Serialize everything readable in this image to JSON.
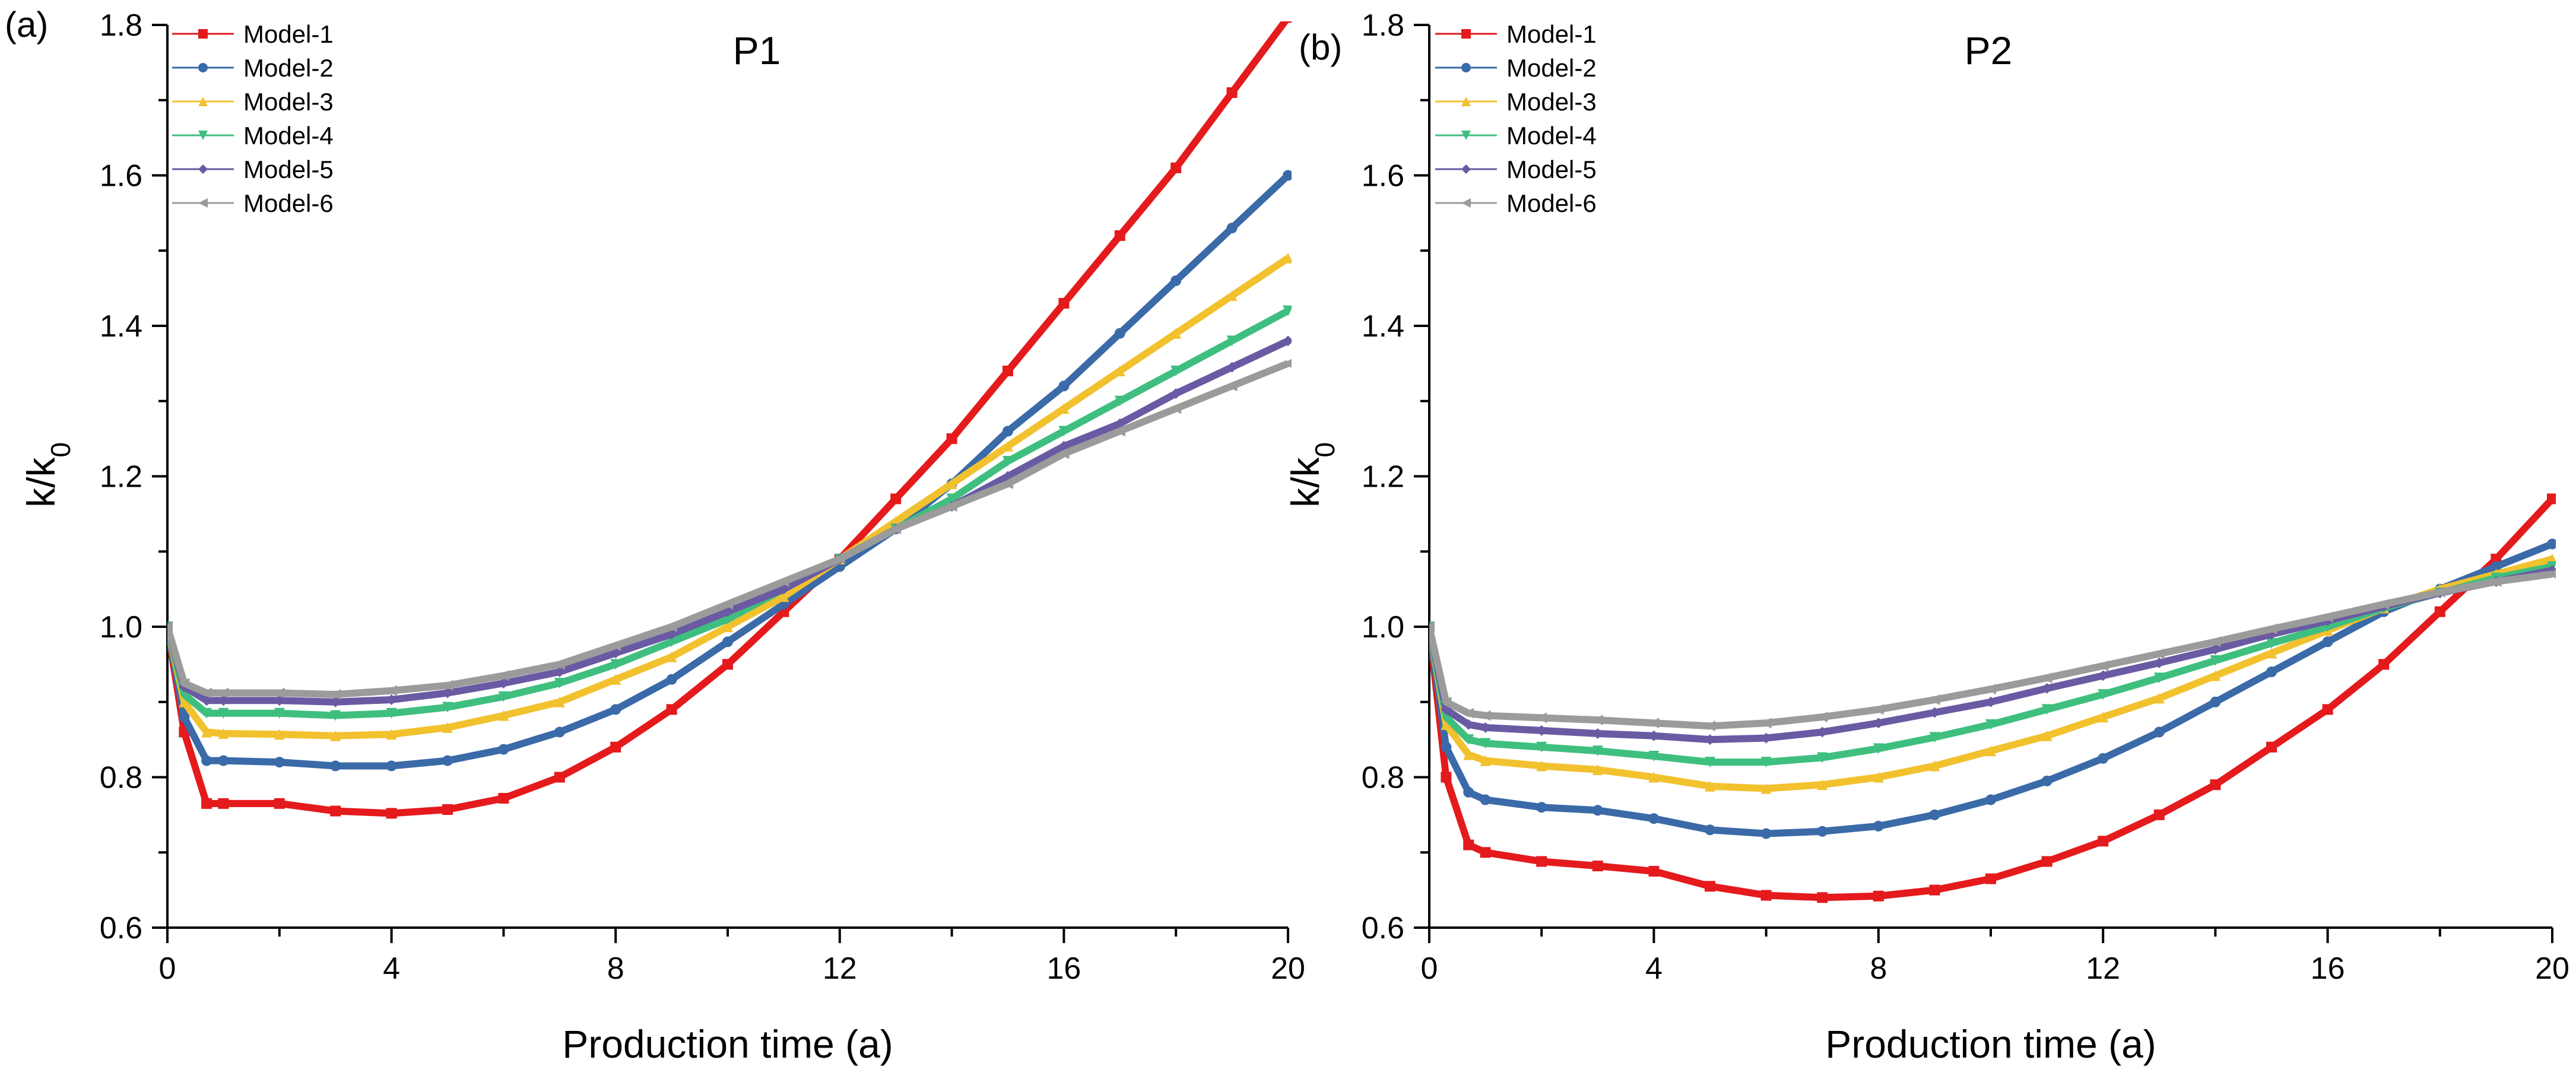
{
  "colors": {
    "model1": "#e41a1c",
    "model2": "#3a6aa8",
    "model3": "#f2c12e",
    "model4": "#3fbf7f",
    "model5": "#6a5aa3",
    "model6": "#9b9b9b"
  },
  "chart_data": [
    {
      "type": "scatter",
      "panel_label": "(a)",
      "title": "P1",
      "xlabel": "Production time (a)",
      "ylabel": "k/k",
      "ylabel_sub": "0",
      "xlim": [
        0,
        20
      ],
      "ylim": [
        0.6,
        1.8
      ],
      "xticks": [
        0,
        4,
        8,
        12,
        16,
        20
      ],
      "xtick_labels": [
        "0",
        "4",
        "8",
        "12",
        "16",
        "20"
      ],
      "yticks": [
        0.6,
        0.8,
        1.0,
        1.2,
        1.4,
        1.6,
        1.8
      ],
      "ytick_labels": [
        "0.6",
        "0.8",
        "1.0",
        "1.2",
        "1.4",
        "1.6",
        "1.8"
      ],
      "legend_position": "top-left",
      "series": [
        {
          "name": "Model-1",
          "color_key": "model1",
          "marker": "square",
          "x": [
            0,
            0.3,
            0.7,
            1,
            2,
            3,
            4,
            5,
            6,
            7,
            8,
            9,
            10,
            11,
            12,
            13,
            14,
            15,
            16,
            17,
            18,
            19,
            20
          ],
          "y": [
            1.0,
            0.86,
            0.765,
            0.765,
            0.765,
            0.755,
            0.752,
            0.757,
            0.772,
            0.8,
            0.84,
            0.89,
            0.95,
            1.02,
            1.09,
            1.17,
            1.25,
            1.34,
            1.43,
            1.52,
            1.61,
            1.71,
            1.81
          ]
        },
        {
          "name": "Model-2",
          "color_key": "model2",
          "marker": "circle",
          "x": [
            0,
            0.3,
            0.7,
            1,
            2,
            3,
            4,
            5,
            6,
            7,
            8,
            9,
            10,
            11,
            12,
            13,
            14,
            15,
            16,
            17,
            18,
            19,
            20
          ],
          "y": [
            1.0,
            0.88,
            0.822,
            0.822,
            0.82,
            0.815,
            0.815,
            0.822,
            0.837,
            0.86,
            0.89,
            0.93,
            0.98,
            1.03,
            1.08,
            1.13,
            1.19,
            1.26,
            1.32,
            1.39,
            1.46,
            1.53,
            1.6
          ]
        },
        {
          "name": "Model-3",
          "color_key": "model3",
          "marker": "triangle-up",
          "x": [
            0,
            0.3,
            0.7,
            1,
            2,
            3,
            4,
            5,
            6,
            7,
            8,
            9,
            10,
            11,
            12,
            13,
            14,
            15,
            16,
            17,
            18,
            19,
            20
          ],
          "y": [
            1.0,
            0.9,
            0.86,
            0.858,
            0.857,
            0.855,
            0.857,
            0.866,
            0.882,
            0.9,
            0.93,
            0.96,
            1.0,
            1.04,
            1.09,
            1.14,
            1.19,
            1.24,
            1.29,
            1.34,
            1.39,
            1.44,
            1.49
          ]
        },
        {
          "name": "Model-4",
          "color_key": "model4",
          "marker": "triangle-down",
          "x": [
            0,
            0.3,
            0.7,
            1,
            2,
            3,
            4,
            5,
            6,
            7,
            8,
            9,
            10,
            11,
            12,
            13,
            14,
            15,
            16,
            17,
            18,
            19,
            20
          ],
          "y": [
            1.0,
            0.91,
            0.885,
            0.885,
            0.885,
            0.882,
            0.885,
            0.893,
            0.907,
            0.925,
            0.95,
            0.98,
            1.01,
            1.05,
            1.09,
            1.13,
            1.17,
            1.22,
            1.26,
            1.3,
            1.34,
            1.38,
            1.42
          ]
        },
        {
          "name": "Model-5",
          "color_key": "model5",
          "marker": "diamond",
          "x": [
            0,
            0.3,
            0.7,
            1,
            2,
            3,
            4,
            5,
            6,
            7,
            8,
            9,
            10,
            11,
            12,
            13,
            14,
            15,
            16,
            17,
            18,
            19,
            20
          ],
          "y": [
            1.0,
            0.92,
            0.902,
            0.902,
            0.902,
            0.9,
            0.903,
            0.912,
            0.925,
            0.94,
            0.965,
            0.99,
            1.02,
            1.05,
            1.09,
            1.13,
            1.16,
            1.2,
            1.24,
            1.27,
            1.31,
            1.345,
            1.38
          ]
        },
        {
          "name": "Model-6",
          "color_key": "model6",
          "marker": "left-triangle",
          "x": [
            0,
            0.3,
            0.7,
            1,
            2,
            3,
            4,
            5,
            6,
            7,
            8,
            9,
            10,
            11,
            12,
            13,
            14,
            15,
            16,
            17,
            18,
            19,
            20
          ],
          "y": [
            1.0,
            0.925,
            0.912,
            0.912,
            0.912,
            0.91,
            0.915,
            0.922,
            0.935,
            0.95,
            0.975,
            1.0,
            1.03,
            1.06,
            1.09,
            1.13,
            1.16,
            1.19,
            1.23,
            1.26,
            1.29,
            1.32,
            1.35
          ]
        }
      ]
    },
    {
      "type": "scatter",
      "panel_label": "(b)",
      "title": "P2",
      "xlabel": "Production time (a)",
      "ylabel": "k/k",
      "ylabel_sub": "0",
      "xlim": [
        0,
        20
      ],
      "ylim": [
        0.6,
        1.8
      ],
      "xticks": [
        0,
        4,
        8,
        12,
        16,
        20
      ],
      "xtick_labels": [
        "0",
        "4",
        "8",
        "12",
        "16",
        "20"
      ],
      "yticks": [
        0.6,
        0.8,
        1.0,
        1.2,
        1.4,
        1.6,
        1.8
      ],
      "ytick_labels": [
        "0.6",
        "0.8",
        "1.0",
        "1.2",
        "1.4",
        "1.6",
        "1.8"
      ],
      "legend_position": "top-left",
      "series": [
        {
          "name": "Model-1",
          "color_key": "model1",
          "marker": "square",
          "x": [
            0,
            0.3,
            0.7,
            1,
            2,
            3,
            4,
            5,
            6,
            7,
            8,
            9,
            10,
            11,
            12,
            13,
            14,
            15,
            16,
            17,
            18,
            19,
            20
          ],
          "y": [
            1.0,
            0.8,
            0.71,
            0.7,
            0.688,
            0.682,
            0.675,
            0.655,
            0.643,
            0.64,
            0.642,
            0.65,
            0.665,
            0.688,
            0.715,
            0.75,
            0.79,
            0.84,
            0.89,
            0.95,
            1.02,
            1.09,
            1.17
          ]
        },
        {
          "name": "Model-2",
          "color_key": "model2",
          "marker": "circle",
          "x": [
            0,
            0.3,
            0.7,
            1,
            2,
            3,
            4,
            5,
            6,
            7,
            8,
            9,
            10,
            11,
            12,
            13,
            14,
            15,
            16,
            17,
            18,
            19,
            20
          ],
          "y": [
            1.0,
            0.84,
            0.78,
            0.77,
            0.76,
            0.756,
            0.745,
            0.73,
            0.725,
            0.728,
            0.735,
            0.75,
            0.77,
            0.795,
            0.825,
            0.86,
            0.9,
            0.94,
            0.98,
            1.02,
            1.05,
            1.08,
            1.11
          ]
        },
        {
          "name": "Model-3",
          "color_key": "model3",
          "marker": "triangle-up",
          "x": [
            0,
            0.3,
            0.7,
            1,
            2,
            3,
            4,
            5,
            6,
            7,
            8,
            9,
            10,
            11,
            12,
            13,
            14,
            15,
            16,
            17,
            18,
            19,
            20
          ],
          "y": [
            1.0,
            0.87,
            0.83,
            0.822,
            0.815,
            0.81,
            0.8,
            0.788,
            0.785,
            0.79,
            0.8,
            0.815,
            0.835,
            0.855,
            0.88,
            0.905,
            0.935,
            0.965,
            0.995,
            1.025,
            1.05,
            1.07,
            1.09
          ]
        },
        {
          "name": "Model-4",
          "color_key": "model4",
          "marker": "triangle-down",
          "x": [
            0,
            0.3,
            0.7,
            1,
            2,
            3,
            4,
            5,
            6,
            7,
            8,
            9,
            10,
            11,
            12,
            13,
            14,
            15,
            16,
            17,
            18,
            19,
            20
          ],
          "y": [
            1.0,
            0.88,
            0.85,
            0.845,
            0.84,
            0.835,
            0.828,
            0.82,
            0.82,
            0.826,
            0.838,
            0.853,
            0.87,
            0.89,
            0.91,
            0.932,
            0.955,
            0.978,
            1.0,
            1.025,
            1.045,
            1.065,
            1.08
          ]
        },
        {
          "name": "Model-5",
          "color_key": "model5",
          "marker": "diamond",
          "x": [
            0,
            0.3,
            0.7,
            1,
            2,
            3,
            4,
            5,
            6,
            7,
            8,
            9,
            10,
            11,
            12,
            13,
            14,
            15,
            16,
            17,
            18,
            19,
            20
          ],
          "y": [
            1.0,
            0.89,
            0.87,
            0.866,
            0.862,
            0.858,
            0.855,
            0.85,
            0.852,
            0.86,
            0.872,
            0.886,
            0.9,
            0.918,
            0.935,
            0.952,
            0.97,
            0.99,
            1.008,
            1.027,
            1.045,
            1.06,
            1.075
          ]
        },
        {
          "name": "Model-6",
          "color_key": "model6",
          "marker": "left-triangle",
          "x": [
            0,
            0.3,
            0.7,
            1,
            2,
            3,
            4,
            5,
            6,
            7,
            8,
            9,
            10,
            11,
            12,
            13,
            14,
            15,
            16,
            17,
            18,
            19,
            20
          ],
          "y": [
            1.0,
            0.9,
            0.885,
            0.882,
            0.879,
            0.876,
            0.872,
            0.868,
            0.872,
            0.88,
            0.89,
            0.903,
            0.917,
            0.932,
            0.948,
            0.964,
            0.98,
            0.997,
            1.013,
            1.03,
            1.046,
            1.06,
            1.07
          ]
        }
      ]
    }
  ]
}
